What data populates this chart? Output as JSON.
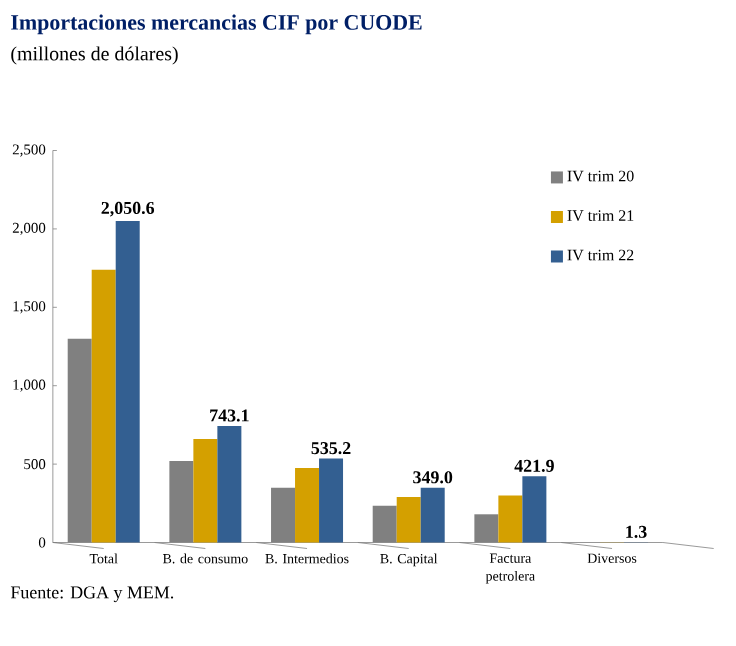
{
  "chart_data": {
    "type": "bar",
    "title": "Importaciones mercancias CIF por CUODE",
    "subtitle": "(millones de dólares)",
    "categories": [
      "Total",
      "B. de consumo",
      "B. Intermedios",
      "B. Capital",
      "Factura petrolera",
      "Diversos"
    ],
    "series": [
      {
        "name": "IV trim 20",
        "color": "#808080",
        "values": [
          1300,
          520,
          350,
          235,
          180,
          1.0
        ]
      },
      {
        "name": "IV trim 21",
        "color": "#d4a000",
        "values": [
          1740,
          660,
          475,
          290,
          300,
          1.2
        ]
      },
      {
        "name": "IV trim 22",
        "color": "#335f91",
        "values": [
          2050.6,
          743.1,
          535.2,
          349.0,
          421.9,
          1.3
        ],
        "value_labels": [
          "2,050.6",
          "743.1",
          "535.2",
          "349.0",
          "421.9",
          "1.3"
        ]
      }
    ],
    "ylim": [
      0,
      2500
    ],
    "yticks": [
      {
        "value": 0,
        "label": "0"
      },
      {
        "value": 500,
        "label": "500"
      },
      {
        "value": 1000,
        "label": "1,000"
      },
      {
        "value": 1500,
        "label": "1,500"
      },
      {
        "value": 2000,
        "label": "2,000"
      },
      {
        "value": 2500,
        "label": "2,500"
      }
    ],
    "legend": "top right",
    "grid": false,
    "annotations": [
      "Fuente: DGA y MEM."
    ]
  }
}
